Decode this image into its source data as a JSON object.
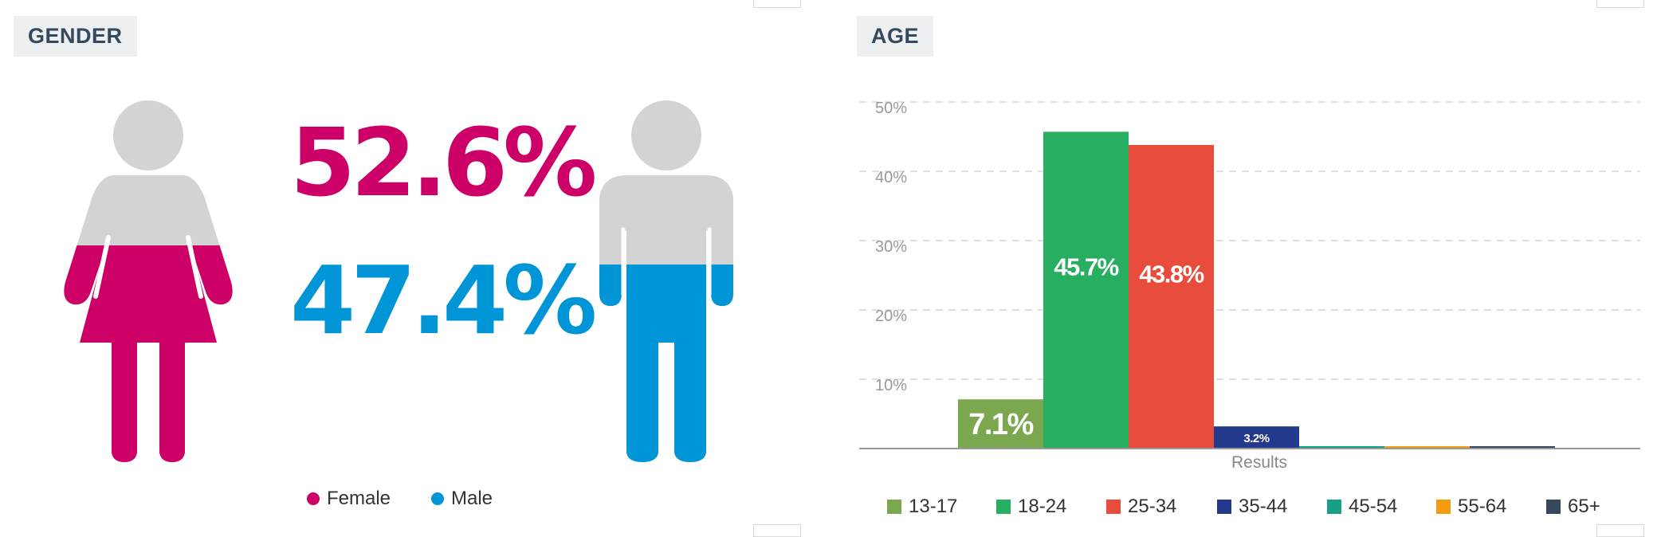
{
  "gender_panel": {
    "title": "GENDER",
    "female_pct": "52.6%",
    "male_pct": "47.4%",
    "female_color": "#cc0066",
    "male_color": "#0095d6",
    "figure_base_color": "#d3d3d3",
    "legend": [
      {
        "label": "Female",
        "color": "#cc0066"
      },
      {
        "label": "Male",
        "color": "#0095d6"
      }
    ]
  },
  "age_panel": {
    "title": "AGE"
  },
  "chart_data": [
    {
      "type": "pie",
      "categories": [
        "Female",
        "Male"
      ],
      "values": [
        52.6,
        47.4
      ],
      "title": "GENDER"
    },
    {
      "type": "bar",
      "title": "AGE",
      "xlabel": "Results",
      "ylabel": "",
      "ylim": [
        0,
        50
      ],
      "yticks": [
        "10%",
        "20%",
        "30%",
        "40%",
        "50%"
      ],
      "grid": true,
      "legend_position": "bottom",
      "series": [
        {
          "name": "13-17",
          "value": 7.1,
          "label": "7.1%",
          "color": "#7ba84f"
        },
        {
          "name": "18-24",
          "value": 45.7,
          "label": "45.7%",
          "color": "#27ae60"
        },
        {
          "name": "25-34",
          "value": 43.8,
          "label": "43.8%",
          "color": "#e74c3c"
        },
        {
          "name": "35-44",
          "value": 3.2,
          "label": "3.2%",
          "color": "#233a8c"
        },
        {
          "name": "45-54",
          "value": 0.3,
          "label": "",
          "color": "#16a085"
        },
        {
          "name": "55-64",
          "value": 0.3,
          "label": "",
          "color": "#f39c12"
        },
        {
          "name": "65+",
          "value": 0.3,
          "label": "",
          "color": "#34495e"
        }
      ]
    }
  ]
}
